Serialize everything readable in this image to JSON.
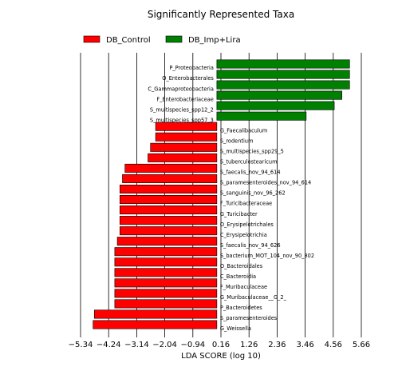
{
  "chart_data": {
    "type": "bar",
    "orientation": "horizontal",
    "title": "Significantly Represented Taxa",
    "xlabel": "LDA SCORE (log 10)",
    "ylabel": "",
    "xticks": [
      -5.34,
      -4.24,
      -3.14,
      -2.04,
      -0.94,
      0.16,
      1.26,
      2.36,
      3.46,
      4.56,
      5.66
    ],
    "xtick_labels": [
      "−5.34",
      "−4.24",
      "−3.14",
      "−2.04",
      "−0.94",
      "0.16",
      "1.26",
      "2.36",
      "3.46",
      "4.56",
      "5.66"
    ],
    "xlim": [
      -5.34,
      5.66
    ],
    "grid": "vertical",
    "legend_position": "top-left",
    "series": [
      {
        "name": "DB_Control",
        "color": "#ff0000"
      },
      {
        "name": "DB_Imp+Lira",
        "color": "#008000"
      }
    ],
    "categories": [
      "P_Proteobacteria",
      "O_Enterobacterales",
      "C_Gammaproteobacteria",
      "F_Enterobacteriaceae",
      "S_multispecies_spp12_2",
      "S_multispecies_spp57_3",
      "G_Faecalibaculum",
      "S_rodentium",
      "S_multispecies_spp29_5",
      "S_tuberculostearicum",
      "S_faecalis_nov_94_614",
      "S_paramesenteroides_nov_94_614",
      "S_sanguinis_nov_96_262",
      "F_Turicibacteraceae",
      "G_Turicibacter",
      "O_Erysipelotrichales",
      "C_Erysipelotrichia",
      "S_faecalis_nov_94_626",
      "S_bacterium_MOT_104_nov_90_802",
      "O_Bacteroidales",
      "C_Bacteroidia",
      "F_Muribaculaceae",
      "G_Muribaculaceae__G_2_",
      "P_Bacteroidetes",
      "S_paramesenteroides",
      "G_Weissella"
    ],
    "values": [
      5.2,
      5.2,
      5.2,
      4.9,
      4.6,
      3.5,
      -2.4,
      -2.4,
      -2.6,
      -2.7,
      -3.6,
      -3.7,
      -3.8,
      -3.8,
      -3.8,
      -3.8,
      -3.8,
      -3.9,
      -4.0,
      -4.0,
      -4.0,
      -4.0,
      -4.0,
      -4.0,
      -4.8,
      -4.85
    ],
    "groups": [
      "DB_Imp+Lira",
      "DB_Imp+Lira",
      "DB_Imp+Lira",
      "DB_Imp+Lira",
      "DB_Imp+Lira",
      "DB_Imp+Lira",
      "DB_Control",
      "DB_Control",
      "DB_Control",
      "DB_Control",
      "DB_Control",
      "DB_Control",
      "DB_Control",
      "DB_Control",
      "DB_Control",
      "DB_Control",
      "DB_Control",
      "DB_Control",
      "DB_Control",
      "DB_Control",
      "DB_Control",
      "DB_Control",
      "DB_Control",
      "DB_Control",
      "DB_Control",
      "DB_Control"
    ]
  }
}
